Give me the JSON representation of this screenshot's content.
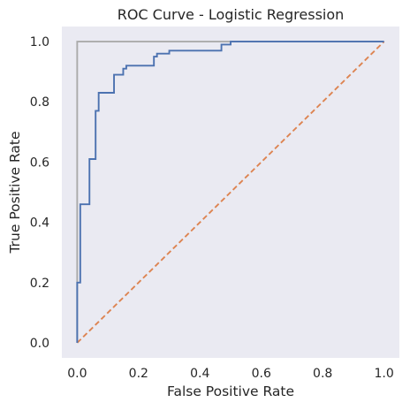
{
  "chart_data": {
    "type": "line",
    "title": "ROC Curve - Logistic Regression",
    "xlabel": "False Positive Rate",
    "ylabel": "True Positive Rate",
    "xlim": [
      -0.05,
      1.05
    ],
    "ylim": [
      -0.05,
      1.05
    ],
    "xticks": [
      "0.0",
      "0.2",
      "0.4",
      "0.6",
      "0.8",
      "1.0"
    ],
    "yticks": [
      "0.0",
      "0.2",
      "0.4",
      "0.6",
      "0.8",
      "1.0"
    ],
    "grid": false,
    "background_color": "#eaeaf2",
    "series": [
      {
        "style": "solid",
        "color": "#aaaaaa",
        "x": [
          0.0,
          0.0,
          1.0
        ],
        "y": [
          0.0,
          1.0,
          1.0
        ]
      },
      {
        "style": "dashed",
        "color": "#dd8452",
        "x": [
          0.0,
          1.0
        ],
        "y": [
          0.0,
          1.0
        ]
      },
      {
        "style": "solid",
        "color": "#4c72b0",
        "x": [
          0.0,
          0.0,
          0.01,
          0.01,
          0.04,
          0.04,
          0.06,
          0.06,
          0.07,
          0.07,
          0.12,
          0.12,
          0.15,
          0.15,
          0.16,
          0.16,
          0.25,
          0.25,
          0.26,
          0.26,
          0.3,
          0.3,
          0.47,
          0.47,
          0.5,
          0.5,
          1.0
        ],
        "y": [
          0.0,
          0.2,
          0.2,
          0.46,
          0.46,
          0.61,
          0.61,
          0.77,
          0.77,
          0.83,
          0.83,
          0.89,
          0.89,
          0.91,
          0.91,
          0.92,
          0.92,
          0.95,
          0.95,
          0.96,
          0.96,
          0.97,
          0.97,
          0.99,
          0.99,
          1.0,
          1.0
        ]
      }
    ]
  }
}
